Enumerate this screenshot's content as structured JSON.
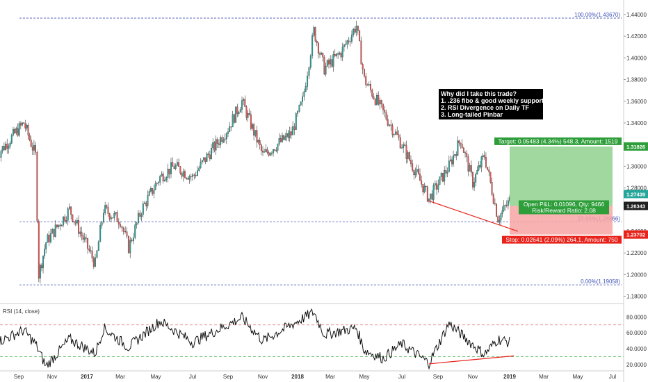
{
  "chart_data": [
    {
      "type": "candlestick",
      "y_axis": {
        "ticks": [
          "1.44000",
          "1.42000",
          "1.40000",
          "1.38000",
          "1.36000",
          "1.34000",
          "1.32000",
          "1.30000",
          "1.28000",
          "1.24000",
          "1.22000",
          "1.20000",
          "1.18000"
        ],
        "tick_values": [
          1.44,
          1.42,
          1.4,
          1.38,
          1.36,
          1.34,
          1.32,
          1.3,
          1.28,
          1.24,
          1.22,
          1.2,
          1.18
        ],
        "ylim": [
          1.174,
          1.447
        ]
      },
      "x_axis": {
        "labels": [
          "Sep",
          "Nov",
          "2017",
          "Mar",
          "May",
          "Jul",
          "Sep",
          "Nov",
          "2018",
          "Mar",
          "May",
          "Jul",
          "Sep",
          "Nov",
          "2019",
          "Mar",
          "May",
          "Jul"
        ],
        "bold_labels": [
          "2017",
          "2018",
          "2019"
        ]
      },
      "price_path": {
        "dates": [
          "2016-08",
          "2016-09-10",
          "2016-10-01",
          "2016-10-07",
          "2016-10-20",
          "2016-12-01",
          "2017-01-16",
          "2017-02-01",
          "2017-03-01",
          "2017-03-15",
          "2017-04-07",
          "2017-05-08",
          "2017-06-01",
          "2017-07-01",
          "2017-07-20",
          "2017-09-01",
          "2017-09-25",
          "2017-11-01",
          "2017-12-20",
          "2018-01-10",
          "2018-01-31",
          "2018-02-20",
          "2018-03-20",
          "2018-04-17",
          "2018-05-01",
          "2018-06-01",
          "2018-07-01",
          "2018-08-16",
          "2018-09-20",
          "2018-10-10",
          "2018-10-31",
          "2018-11-20",
          "2018-12-12",
          "2019-01-01",
          "2019-01-03"
        ],
        "closes": [
          1.31,
          1.34,
          1.31,
          1.2,
          1.23,
          1.26,
          1.21,
          1.26,
          1.25,
          1.225,
          1.26,
          1.29,
          1.3,
          1.29,
          1.305,
          1.335,
          1.36,
          1.31,
          1.33,
          1.36,
          1.425,
          1.39,
          1.405,
          1.43,
          1.38,
          1.35,
          1.32,
          1.27,
          1.3,
          1.325,
          1.285,
          1.31,
          1.252,
          1.268,
          1.272
        ]
      },
      "fib_levels": [
        {
          "label": "100.00%(1.43670)",
          "value": 1.4367
        },
        {
          "label": "23.60%(1.24866)",
          "value": 1.24866
        },
        {
          "label": "0.00%(1.19058)",
          "value": 1.19058
        }
      ],
      "position": {
        "target_label": "Target: 0.05483 (4.34%) 548.3, Amount: 1519",
        "pnl_label": "Open P&L: 0.01096, Qty: 9466",
        "rr_label": "Risk/Reward Ratio: 2.08",
        "stop_label": "Stop: 0.02641 (2.09%) 264.1, Amount: 750",
        "entry": 1.26343,
        "target": 1.31826,
        "stop": 1.23702,
        "start_date": "2019-01-01",
        "end_date": "2019-07-01"
      },
      "price_badges": [
        {
          "text": "1.31826",
          "value": 1.31826,
          "color": "#2e9e3a"
        },
        {
          "text": "1.27439",
          "value": 1.27439,
          "color": "#26a69a"
        },
        {
          "text": "1.26343",
          "value": 1.26343,
          "color": "#202020"
        },
        {
          "text": "1.23702",
          "value": 1.23702,
          "color": "#e8231c"
        }
      ],
      "annotation": {
        "lines": [
          "Why did I take this trade?",
          "1. .236 fibo & good weekly support",
          "2. RSI Divergence on Daily TF",
          "3. Long-tailed Pinbar"
        ]
      },
      "divergence_line": {
        "from": {
          "date": "2018-08-16",
          "value": 1.268
        },
        "to": {
          "date": "2019-01-01",
          "value": 1.24
        }
      },
      "colors": {
        "up": "#26a69a",
        "down": "#ef5350",
        "wick": "#333333",
        "fib": "#3f51b5",
        "target_zone": "#8fd18f",
        "stop_zone": "#f8a5a5"
      }
    },
    {
      "type": "line",
      "title": "RSI (14, close)",
      "y_axis": {
        "ticks": [
          "80.0000",
          "60.0000",
          "40.0000",
          "20.0000"
        ],
        "tick_values": [
          80,
          60,
          40,
          20
        ],
        "ylim": [
          13,
          96
        ]
      },
      "levels": [
        70,
        30
      ],
      "rsi_path": {
        "dates": [
          "2016-08",
          "2016-09-10",
          "2016-10-01",
          "2016-10-20",
          "2016-12-01",
          "2017-01-16",
          "2017-02-01",
          "2017-03-15",
          "2017-05-08",
          "2017-07-01",
          "2017-09-25",
          "2017-11-01",
          "2018-01-31",
          "2018-02-20",
          "2018-04-17",
          "2018-05-01",
          "2018-06-01",
          "2018-07-01",
          "2018-08-16",
          "2018-09-20",
          "2018-10-31",
          "2018-11-20",
          "2018-12-12",
          "2019-01-01",
          "2019-01-03"
        ],
        "values": [
          48,
          63,
          46,
          18,
          52,
          34,
          66,
          42,
          75,
          48,
          79,
          50,
          86,
          58,
          66,
          38,
          28,
          46,
          22,
          72,
          45,
          33,
          52,
          48,
          55
        ]
      },
      "divergence_line": {
        "from": {
          "date": "2018-08-16",
          "value": 21
        },
        "to": {
          "date": "2019-01-01",
          "value": 31
        }
      }
    }
  ]
}
